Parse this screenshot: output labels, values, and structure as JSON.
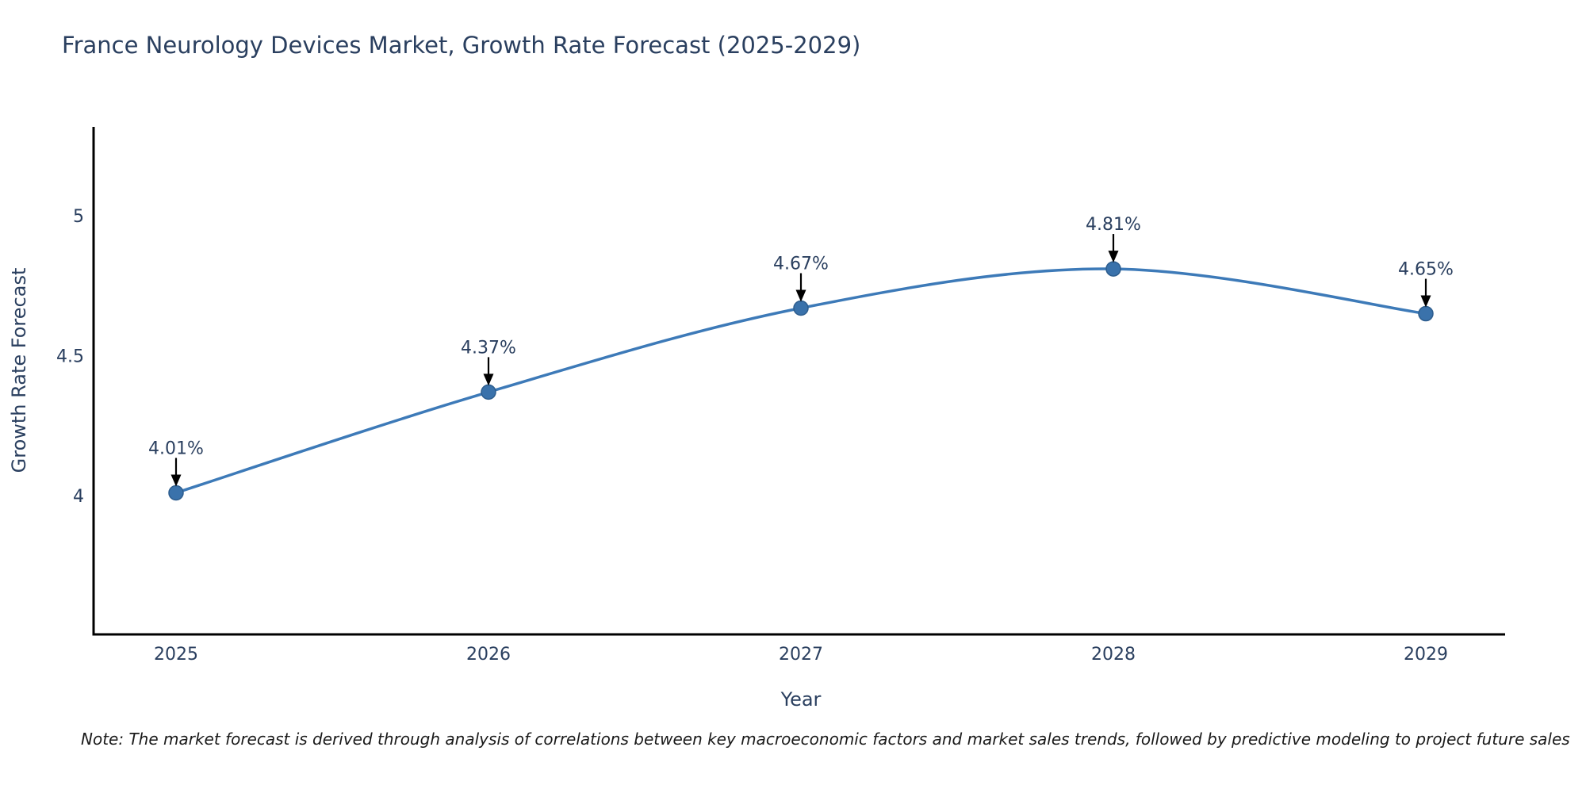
{
  "title": "France Neurology Devices Market, Growth Rate Forecast (2025-2029)",
  "note": "Note: The market forecast is derived through analysis of correlations between key macroeconomic factors and market sales trends, followed by predictive modeling to project future sales",
  "chart_data": {
    "type": "line",
    "title": "France Neurology Devices Market, Growth Rate Forecast (2025-2029)",
    "categories": [
      "2025",
      "2026",
      "2027",
      "2028",
      "2029"
    ],
    "x": [
      2025,
      2026,
      2027,
      2028,
      2029
    ],
    "values": [
      4.01,
      4.37,
      4.67,
      4.81,
      4.65
    ],
    "point_labels": [
      "4.01%",
      "4.37%",
      "4.67%",
      "4.81%",
      "4.65%"
    ],
    "xlabel": "Year",
    "ylabel": "Growth Rate Forecast",
    "y_ticks": [
      "4",
      "4.5",
      "5"
    ],
    "y_tick_values": [
      4,
      4.5,
      5
    ],
    "ylim": [
      3.5,
      5.32
    ],
    "line_shape": "spline",
    "grid": false,
    "legend_position": "none",
    "colors": {
      "line": "#3d7ab8",
      "marker": "#3a72ab",
      "marker_edge": "#2d5d8e",
      "axis_line": "#000000",
      "text": "#2a3f5f",
      "annotation_arrow": "#000000",
      "background": "#ffffff"
    }
  }
}
